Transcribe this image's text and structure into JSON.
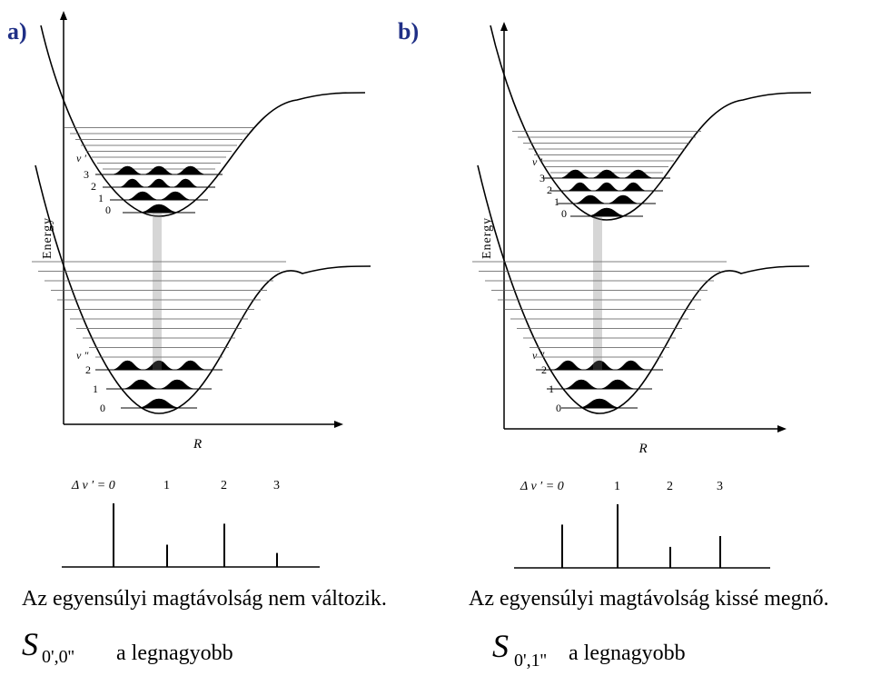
{
  "panels": [
    {
      "label": "a)",
      "energy_axis_label": "Energy",
      "r_axis_label": "R",
      "upper_level_label": "v ′",
      "upper_level_numbers": [
        "3",
        "2",
        "1",
        "0"
      ],
      "lower_level_label": "v ″",
      "lower_level_numbers": [
        "2",
        "1",
        "0"
      ],
      "spectrum_label": "Δ v ′ = 0",
      "spectrum_ticks": [
        "1",
        "2",
        "3"
      ],
      "spectrum_intensities": [
        1.0,
        0.35,
        0.68,
        0.22
      ],
      "caption": "Az egyensúlyi magtávolság nem változik.",
      "symbol": "S",
      "symbol_subscript": "0',0''",
      "note": "a legnagyobb"
    },
    {
      "label": "b)",
      "energy_axis_label": "Energy",
      "r_axis_label": "R",
      "upper_level_label": "v ′",
      "upper_level_numbers": [
        "3",
        "2",
        "1",
        "0"
      ],
      "lower_level_label": "v ″",
      "lower_level_numbers": [
        "2",
        "1",
        "0"
      ],
      "spectrum_label": "Δ v ′ = 0",
      "spectrum_ticks": [
        "1",
        "2",
        "3"
      ],
      "spectrum_intensities": [
        0.68,
        1.0,
        0.33,
        0.5
      ],
      "caption": "Az egyensúlyi magtávolság kissé megnő.",
      "symbol": "S",
      "symbol_subscript": "0',1''",
      "note": "a legnagyobb"
    }
  ],
  "colors": {
    "label": "#1f2f86",
    "ink": "#000000"
  }
}
